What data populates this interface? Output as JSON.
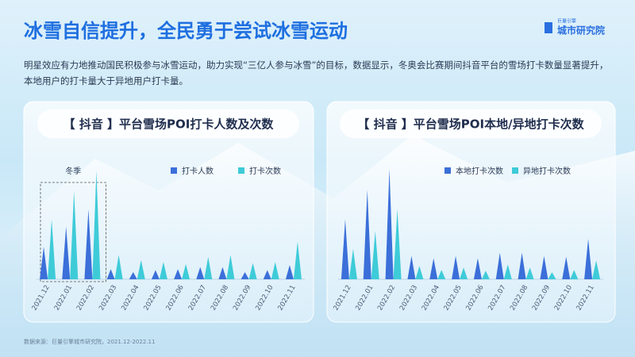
{
  "header": {
    "title": "冰雪自信提升，全民勇于尝试冰雪运动",
    "logo_small": "巨量引擎",
    "logo": "城市研究院"
  },
  "intro": "明星效应有力地推动国民积极参与冰雪运动，助力实现“三亿人参与冰雪”的目标，数据显示，冬奥会比赛期间抖音平台的雪场打卡数量显著提升，本地用户的打卡量大于异地用户打卡量。",
  "source": "数据来源：巨量引擎城市研究院，2021.12-2022.11",
  "chart_data": [
    {
      "type": "spike",
      "title": "【 抖音 】平台雪场POI打卡人数及次数",
      "annotation": "冬季",
      "categories": [
        "2021.12",
        "2022.01",
        "2022.02",
        "2022.03",
        "2022.04",
        "2022.05",
        "2022.06",
        "2022.07",
        "2022.08",
        "2022.09",
        "2022.10",
        "2022.11"
      ],
      "ylim": [
        0,
        115
      ],
      "series": [
        {
          "name": "打卡人数",
          "color": "#3b6fd9",
          "values": [
            32,
            52,
            69,
            10,
            7,
            9,
            10,
            12,
            12,
            7,
            9,
            14
          ]
        },
        {
          "name": "打卡次数",
          "color": "#3ecbd8",
          "values": [
            59,
            87,
            107,
            24,
            19,
            17,
            15,
            22,
            24,
            16,
            17,
            37
          ]
        }
      ]
    },
    {
      "type": "spike",
      "title": "【 抖音 】平台雪场POI本地/异地打卡次数",
      "categories": [
        "2021.12",
        "2022.01",
        "2022.02",
        "2022.03",
        "2022.04",
        "2022.05",
        "2022.06",
        "2022.07",
        "2022.08",
        "2022.09",
        "2022.10",
        "2022.11"
      ],
      "ylim": [
        0,
        150
      ],
      "series": [
        {
          "name": "本地打卡次数",
          "color": "#3b6fd9",
          "values": [
            77,
            115,
            142,
            30,
            27,
            30,
            27,
            34,
            34,
            30,
            29,
            52
          ]
        },
        {
          "name": "异地打卡次数",
          "color": "#3ecbd8",
          "values": [
            39,
            62,
            90,
            17,
            12,
            15,
            11,
            19,
            15,
            9,
            12,
            24
          ]
        }
      ]
    }
  ]
}
